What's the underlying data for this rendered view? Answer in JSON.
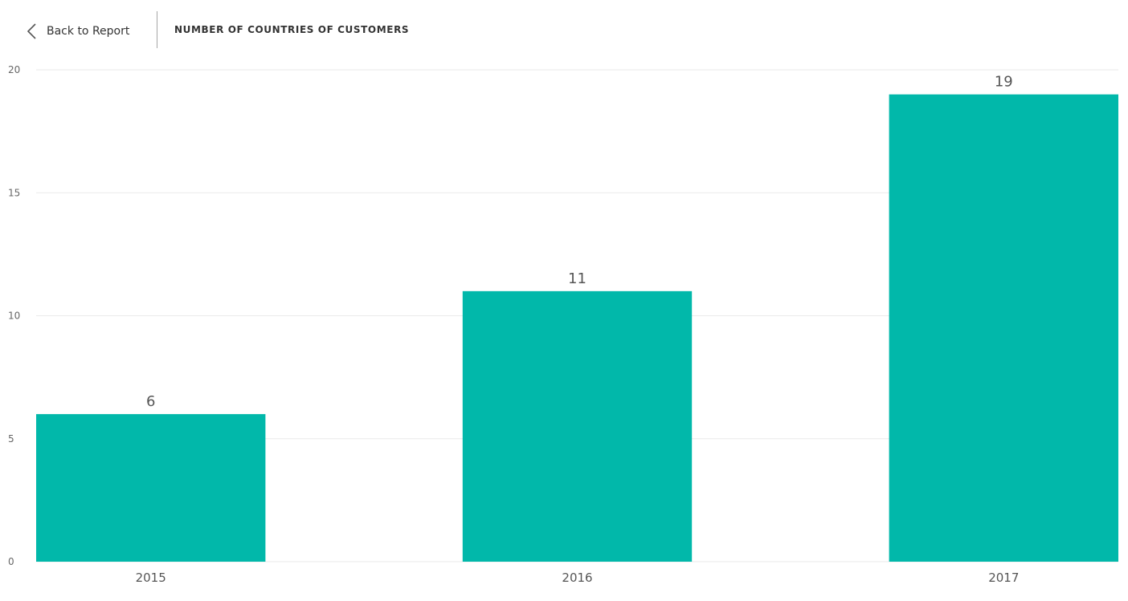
{
  "header": {
    "back_label": "Back to Report",
    "back_icon": "chevron-left-icon",
    "title": "NUMBER OF COUNTRIES OF CUSTOMERS"
  },
  "chart_data": {
    "type": "bar",
    "categories": [
      "2015",
      "2016",
      "2017"
    ],
    "values": [
      6,
      11,
      19
    ],
    "data_labels": [
      "6",
      "11",
      "19"
    ],
    "title": "NUMBER OF COUNTRIES OF CUSTOMERS",
    "xlabel": "",
    "ylabel": "",
    "ylim": [
      0,
      20
    ],
    "yticks": [
      0,
      5,
      10,
      15,
      20
    ],
    "grid": true,
    "bar_color": "#01b8aa",
    "gridline_color": "#eaeaea"
  }
}
